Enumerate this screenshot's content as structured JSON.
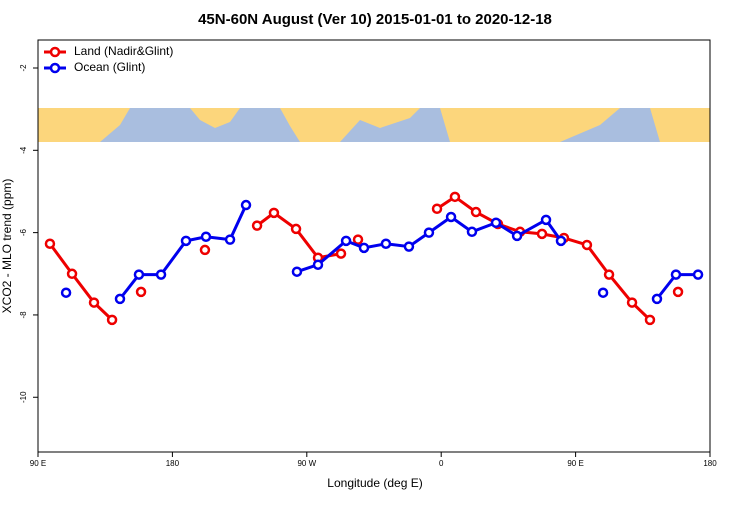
{
  "chart_data": {
    "type": "line",
    "title": "45N-60N August (Ver 10)   2015-01-01 to 2020-12-18",
    "x_label": "Longitude (deg E)",
    "y_label": "XCO2 - MLO trend (ppm)",
    "xlim": [
      90,
      540
    ],
    "ylim": [
      -11.33,
      -1.32
    ],
    "xticks": [
      {
        "value": 90,
        "label": "90 E"
      },
      180,
      {
        "value": 270,
        "label": "90 W"
      },
      {
        "value": 360,
        "label": "0"
      },
      {
        "value": 450,
        "label": "90 E"
      },
      {
        "value": 540,
        "label": "180"
      }
    ],
    "yticks": [
      -2,
      -4,
      -6,
      -8,
      -10
    ],
    "legend": "top-left",
    "series": [
      {
        "name": "Land (Nadir&Glint)",
        "color": "#ee0000",
        "x": [
          98.0,
          112.8,
          127.5,
          139.6,
          null,
          159.0,
          null,
          201.8,
          null,
          236.7,
          248.0,
          262.8,
          277.5,
          292.9,
          null,
          304.3,
          null,
          357.2,
          369.2,
          383.3,
          398.0,
          412.8,
          427.5,
          442.2,
          457.6,
          472.4,
          487.8,
          499.8,
          null,
          518.6
        ],
        "values": [
          -6.27,
          -7.0,
          -7.7,
          -8.12,
          null,
          -7.44,
          null,
          -6.42,
          null,
          -5.83,
          -5.52,
          -5.91,
          -6.61,
          -6.51,
          null,
          -6.17,
          null,
          -5.42,
          -5.13,
          -5.5,
          -5.79,
          -5.98,
          -6.03,
          -6.13,
          -6.3,
          -7.02,
          -7.7,
          -8.12,
          null,
          -7.44
        ]
      },
      {
        "name": "Ocean (Glint)",
        "color": "#0000ee",
        "x": [
          108.8,
          null,
          144.9,
          157.6,
          172.4,
          189.1,
          202.5,
          218.6,
          229.3,
          null,
          263.4,
          277.5,
          296.3,
          308.3,
          323.0,
          338.4,
          351.8,
          366.6,
          380.6,
          396.7,
          410.8,
          430.2,
          440.2,
          null,
          468.4,
          null,
          504.5,
          517.2,
          532.0
        ],
        "values": [
          -7.46,
          null,
          -7.61,
          -7.02,
          -7.02,
          -6.2,
          -6.1,
          -6.17,
          -5.33,
          null,
          -6.95,
          -6.78,
          -6.2,
          -6.37,
          -6.27,
          -6.34,
          -6.0,
          -5.62,
          -5.98,
          -5.76,
          -6.08,
          -5.69,
          -6.2,
          null,
          -7.46,
          null,
          -7.61,
          -7.02,
          -7.02
        ]
      }
    ]
  }
}
